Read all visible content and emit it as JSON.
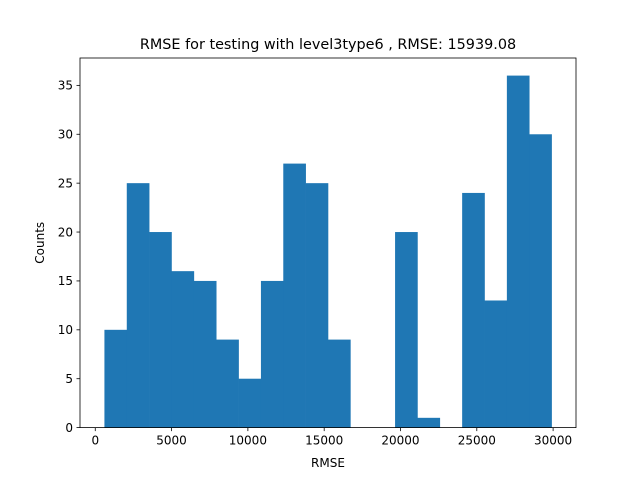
{
  "chart_data": {
    "type": "bar",
    "title": "RMSE for testing with level3type6 , RMSE: 15939.08",
    "xlabel": "RMSE",
    "ylabel": "Counts",
    "xlim": [
      -1000,
      31500
    ],
    "ylim": [
      0,
      37.8
    ],
    "xticks": [
      0,
      5000,
      10000,
      15000,
      20000,
      25000,
      30000
    ],
    "yticks": [
      0,
      5,
      10,
      15,
      20,
      25,
      30,
      35
    ],
    "bin_edges": [
      600,
      2065,
      3530,
      4995,
      6460,
      7925,
      9390,
      10855,
      12320,
      13785,
      15250,
      16715,
      18180,
      19645,
      21110,
      22575,
      24040,
      25505,
      26970,
      28435,
      29900
    ],
    "counts": [
      10,
      25,
      20,
      16,
      15,
      9,
      5,
      15,
      27,
      25,
      9,
      0,
      0,
      20,
      1,
      0,
      24,
      13,
      36,
      30
    ],
    "bar_color": "#1f77b4",
    "grid": false
  }
}
